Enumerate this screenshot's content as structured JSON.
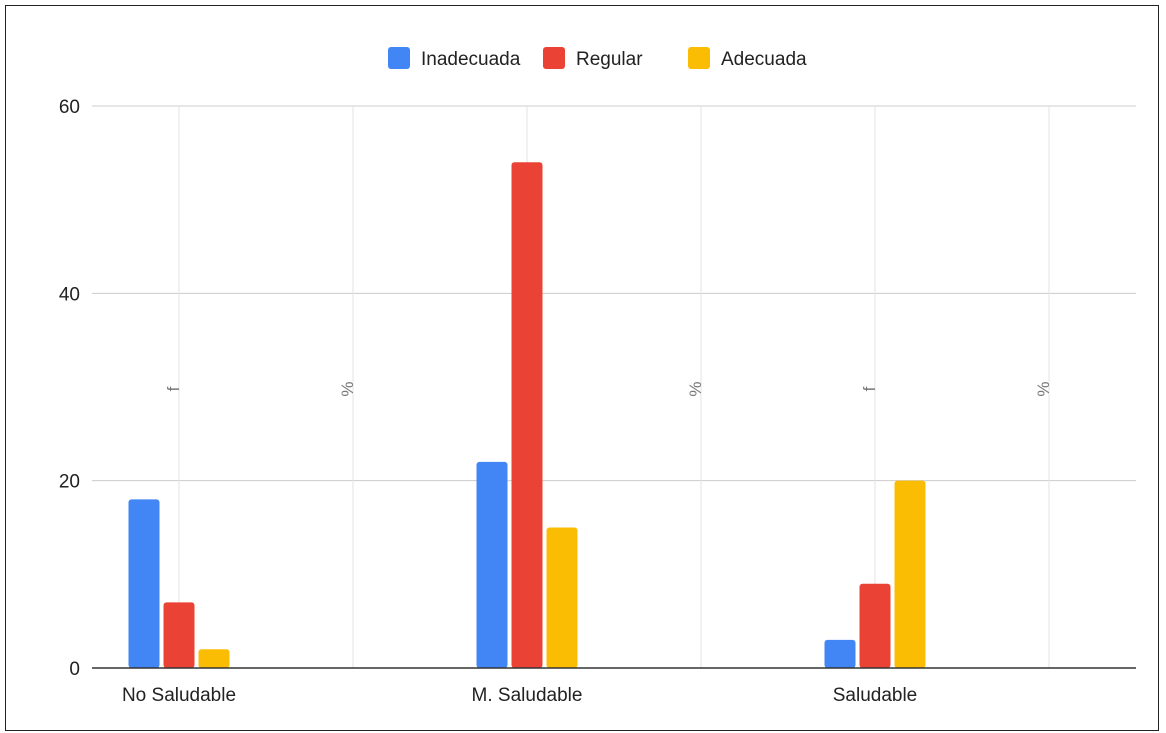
{
  "chart_data": {
    "type": "bar",
    "categories": [
      "No Saludable",
      "M. Saludable",
      "Saludable"
    ],
    "series": [
      {
        "name": "Inadecuada",
        "color": "#4285F4",
        "values": [
          18,
          22,
          3
        ]
      },
      {
        "name": "Regular",
        "color": "#EA4335",
        "values": [
          7,
          54,
          9
        ]
      },
      {
        "name": "Adecuada",
        "color": "#FBBC04",
        "values": [
          2,
          15,
          20
        ]
      }
    ],
    "sub_column_labels": [
      "f",
      "%",
      "f",
      "%",
      "f",
      "%"
    ],
    "yticks": [
      0,
      20,
      40,
      60
    ],
    "ylim": [
      0,
      60
    ],
    "grid": true,
    "legend_position": "top"
  }
}
